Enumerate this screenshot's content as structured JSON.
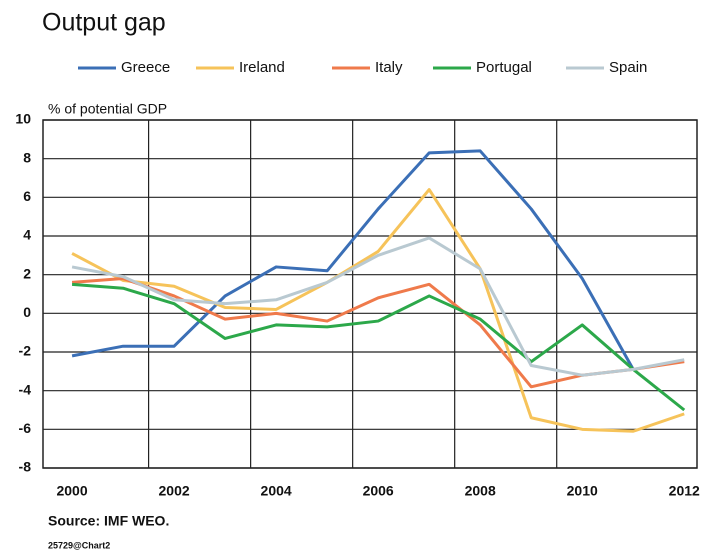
{
  "chart_data": {
    "type": "line",
    "title": "Output gap",
    "y_label": "% of potential GDP",
    "source": "Source: IMF WEO.",
    "footnote": "25729@Chart2",
    "x": [
      2000,
      2001,
      2002,
      2003,
      2004,
      2005,
      2006,
      2007,
      2008,
      2009,
      2010,
      2011,
      2012
    ],
    "series": [
      {
        "name": "Greece",
        "color": "#3b6fb6",
        "values": [
          -2.2,
          -1.7,
          -1.7,
          0.9,
          2.4,
          2.2,
          5.4,
          8.3,
          8.4,
          5.4,
          1.8,
          -2.9,
          null
        ]
      },
      {
        "name": "Ireland",
        "color": "#f6c35a",
        "values": [
          3.1,
          1.7,
          1.4,
          0.3,
          0.2,
          1.6,
          3.2,
          6.4,
          2.3,
          -5.4,
          -6.0,
          -6.1,
          -5.2
        ]
      },
      {
        "name": "Italy",
        "color": "#ef7a4b",
        "values": [
          1.6,
          1.8,
          0.9,
          -0.3,
          0.0,
          -0.4,
          0.8,
          1.5,
          -0.6,
          -3.8,
          -3.2,
          -2.9,
          -2.5
        ]
      },
      {
        "name": "Portugal",
        "color": "#2ca84a",
        "values": [
          1.5,
          1.3,
          0.5,
          -1.3,
          -0.6,
          -0.7,
          -0.4,
          0.9,
          -0.3,
          -2.5,
          -0.6,
          -2.9,
          -5.0
        ]
      },
      {
        "name": "Spain",
        "color": "#b9c9d1",
        "values": [
          2.4,
          1.9,
          0.7,
          0.5,
          0.7,
          1.6,
          3.0,
          3.9,
          2.3,
          -2.7,
          -3.2,
          -2.9,
          -2.4
        ]
      }
    ],
    "xlim": [
      1999.43,
      2012.25
    ],
    "xticks": [
      2000,
      2002,
      2004,
      2006,
      2008,
      2010,
      2012
    ],
    "x_gridlines": [
      2001.5,
      2003.5,
      2005.5,
      2007.5,
      2009.5
    ],
    "ylim": [
      -8,
      10
    ],
    "yticks": [
      -8,
      -6,
      -4,
      -2,
      0,
      2,
      4,
      6,
      8,
      10
    ],
    "grid": true,
    "legend": "top"
  }
}
